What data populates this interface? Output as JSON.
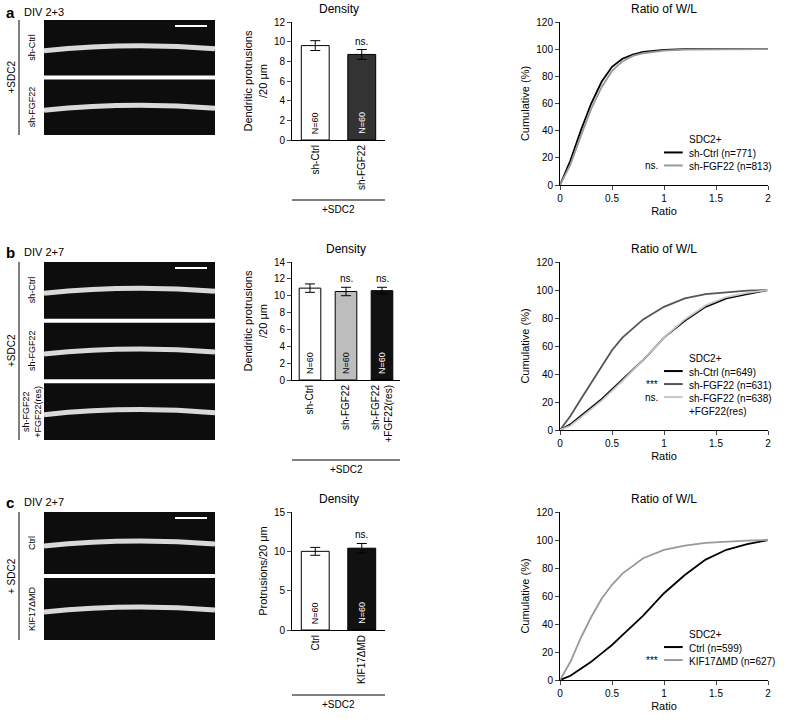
{
  "panels": [
    {
      "letter": "a",
      "label": "DIV 2+3",
      "group": "+SDC2",
      "images": [
        "sh-Ctrl",
        "sh-FGF22"
      ]
    },
    {
      "letter": "b",
      "label": "DIV 2+7",
      "group": "+SDC2",
      "images": [
        "sh-Ctrl",
        "sh-FGF22",
        "sh-FGF22\n+FGF22(res)"
      ]
    },
    {
      "letter": "c",
      "label": "DIV 2+7",
      "group": "+ SDC2",
      "images": [
        "Ctrl",
        "KIF17ΔMD"
      ]
    }
  ],
  "chart_data": [
    {
      "type": "bar",
      "title": "Density",
      "y_label": "Dendritic protrusions\n/20 μm",
      "categories": [
        "sh-Ctrl",
        "sh-FGF22"
      ],
      "values": [
        9.6,
        8.7
      ],
      "errors": [
        0.5,
        0.5
      ],
      "colors": [
        "#ffffff",
        "#333333"
      ],
      "bar_labels": [
        "N=60",
        "N=60"
      ],
      "significance": [
        null,
        "ns."
      ],
      "group_label": "+SDC2",
      "ylim": [
        0,
        12
      ],
      "yticks": [
        0,
        2,
        4,
        6,
        8,
        10,
        12
      ],
      "grid": false
    },
    {
      "type": "line",
      "title": "Ratio of W/L",
      "x_label": "Ratio",
      "y_label": "Cumulative (%)",
      "x": [
        0,
        0.1,
        0.2,
        0.3,
        0.4,
        0.5,
        0.6,
        0.7,
        0.8,
        1,
        1.2,
        1.5,
        2
      ],
      "series": [
        {
          "name": "sh-Ctrl (n=771)",
          "color": "#000000",
          "values": [
            0,
            18,
            40,
            60,
            76,
            87,
            93,
            96,
            98,
            99.5,
            100,
            100,
            100
          ],
          "significance": null
        },
        {
          "name": "sh-FGF22 (n=813)",
          "color": "#999999",
          "values": [
            0,
            15,
            36,
            56,
            72,
            84,
            91,
            95,
            97,
            99,
            99.7,
            100,
            100
          ],
          "significance": "ns."
        }
      ],
      "legend": "lower right",
      "legend_title": "SDC2+",
      "xlim": [
        0,
        2
      ],
      "xticks": [
        0,
        0.5,
        1,
        1.5,
        2
      ],
      "ylim": [
        0,
        120
      ],
      "yticks": [
        0,
        20,
        40,
        60,
        80,
        100,
        120
      ],
      "grid": false
    },
    {
      "type": "bar",
      "title": "Density",
      "y_label": "Dendritic protrusions\n/20 μm",
      "categories": [
        "sh-Ctrl",
        "sh-FGF22",
        "sh-FGF22\n+FGF22(res)"
      ],
      "values": [
        10.9,
        10.5,
        10.6
      ],
      "errors": [
        0.5,
        0.5,
        0.4
      ],
      "colors": [
        "#ffffff",
        "#bdbdbd",
        "#111111"
      ],
      "bar_labels": [
        "N=60",
        "N=60",
        "N=60"
      ],
      "significance": [
        null,
        "ns.",
        "ns."
      ],
      "group_label": "+SDC2",
      "ylim": [
        0,
        14
      ],
      "yticks": [
        0,
        2,
        4,
        6,
        8,
        10,
        12,
        14
      ],
      "grid": false
    },
    {
      "type": "line",
      "title": "Ratio of W/L",
      "x_label": "Ratio",
      "y_label": "Cumulative (%)",
      "x": [
        0,
        0.1,
        0.2,
        0.3,
        0.4,
        0.5,
        0.6,
        0.8,
        1,
        1.2,
        1.4,
        1.6,
        1.8,
        2
      ],
      "series": [
        {
          "name": "sh-Ctrl (n=649)",
          "color": "#000000",
          "values": [
            0,
            4,
            10,
            16,
            22,
            29,
            36,
            50,
            66,
            78,
            88,
            94,
            97,
            100
          ],
          "significance": null
        },
        {
          "name": "sh-FGF22 (n=631)",
          "color": "#555555",
          "values": [
            0,
            10,
            22,
            34,
            46,
            57,
            66,
            79,
            88,
            94,
            97,
            98.5,
            99.5,
            100
          ],
          "significance": "***"
        },
        {
          "name": "sh-FGF22 (n=638)\n+FGF22(res)",
          "color": "#c8c8c8",
          "values": [
            0,
            3,
            9,
            15,
            21,
            28,
            35,
            50,
            66,
            79,
            89,
            95,
            98,
            100
          ],
          "significance": "ns."
        }
      ],
      "legend": "lower right",
      "legend_title": "SDC2+",
      "xlim": [
        0,
        2
      ],
      "xticks": [
        0,
        0.5,
        1,
        1.5,
        2
      ],
      "ylim": [
        0,
        120
      ],
      "yticks": [
        0,
        20,
        40,
        60,
        80,
        100,
        120
      ],
      "grid": false
    },
    {
      "type": "bar",
      "title": "Density",
      "y_label": "Protrusions/20 μm",
      "categories": [
        "Ctrl",
        "KIF17ΔMD"
      ],
      "values": [
        10.0,
        10.4
      ],
      "errors": [
        0.5,
        0.6
      ],
      "colors": [
        "#ffffff",
        "#111111"
      ],
      "bar_labels": [
        "N=60",
        "N=60"
      ],
      "significance": [
        null,
        "ns."
      ],
      "group_label": "+SDC2",
      "ylim": [
        0,
        15
      ],
      "yticks": [
        0,
        5,
        10,
        15
      ],
      "grid": false
    },
    {
      "type": "line",
      "title": "Ratio of W/L",
      "x_label": "Ratio",
      "y_label": "Cumulative (%)",
      "x": [
        0,
        0.1,
        0.2,
        0.3,
        0.4,
        0.5,
        0.6,
        0.8,
        1,
        1.2,
        1.4,
        1.6,
        1.8,
        2
      ],
      "series": [
        {
          "name": "Ctrl (n=599)",
          "color": "#000000",
          "values": [
            0,
            3,
            8,
            13,
            19,
            25,
            32,
            46,
            62,
            75,
            86,
            93,
            97,
            100
          ],
          "significance": null
        },
        {
          "name": "KIF17ΔMD (n=627)",
          "color": "#999999",
          "values": [
            0,
            13,
            30,
            45,
            58,
            68,
            76,
            87,
            93,
            96,
            98,
            99,
            99.5,
            100
          ],
          "significance": "***"
        }
      ],
      "legend": "lower right",
      "legend_title": "SDC2+",
      "xlim": [
        0,
        2
      ],
      "xticks": [
        0,
        0.5,
        1,
        1.5,
        2
      ],
      "ylim": [
        0,
        120
      ],
      "yticks": [
        0,
        20,
        40,
        60,
        80,
        100,
        120
      ],
      "grid": false
    }
  ]
}
